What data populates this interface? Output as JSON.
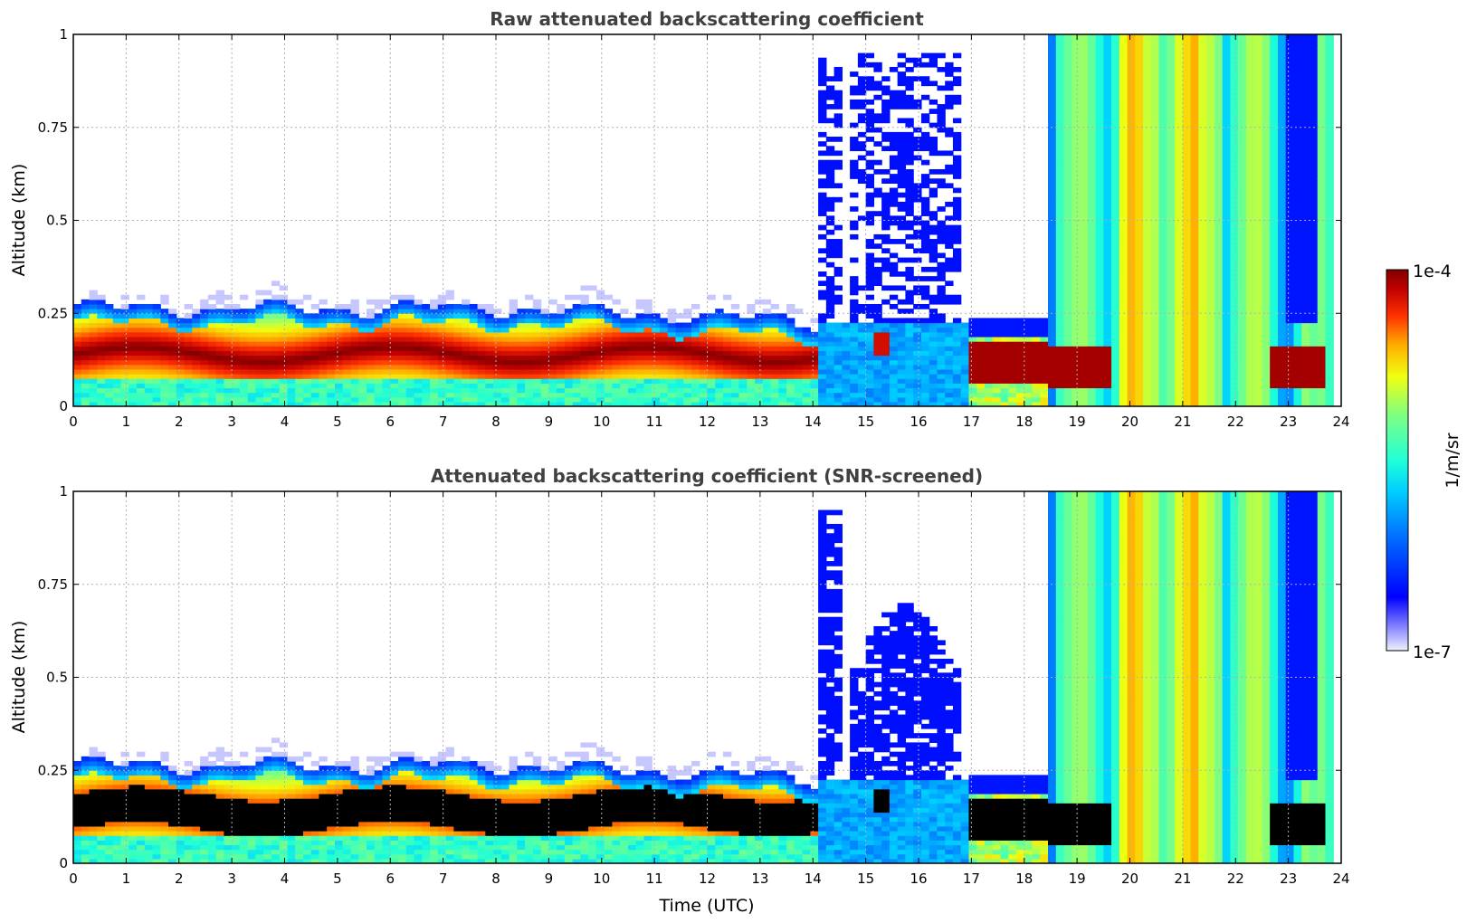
{
  "chart_data": [
    {
      "type": "heatmap",
      "title": "Raw attenuated backscattering coefficient",
      "xlabel": "",
      "ylabel": "Altitude (km)",
      "xlim": [
        0,
        24
      ],
      "ylim": [
        0,
        1
      ],
      "x_ticks": [
        "0",
        "1",
        "2",
        "3",
        "4",
        "5",
        "6",
        "7",
        "8",
        "9",
        "10",
        "11",
        "12",
        "13",
        "14",
        "15",
        "16",
        "17",
        "18",
        "19",
        "20",
        "21",
        "22",
        "23",
        "24"
      ],
      "y_ticks": [
        "0",
        "0.25",
        "0.5",
        "0.75",
        "1"
      ],
      "grid": true,
      "screened": false,
      "layers": [
        {
          "feature": "dense aerosol/fog layer",
          "t_start": 0,
          "t_end": 14,
          "base_km": 0.0,
          "top_km": 0.28,
          "peak_km": 0.14,
          "level": "high"
        },
        {
          "feature": "weak echo plumes",
          "t_start": 14,
          "t_end": 16.9,
          "base_km": 0.0,
          "top_km": 1.0,
          "level": "low"
        },
        {
          "feature": "dense layer",
          "t_start": 16.9,
          "t_end": 18.4,
          "base_km": 0.05,
          "top_km": 0.18,
          "level": "high"
        },
        {
          "feature": "precipitation/cloud echoes",
          "t_start": 18.4,
          "t_end": 23.8,
          "base_km": 0.0,
          "top_km": 1.0,
          "level": "medium"
        },
        {
          "feature": "dense layer",
          "t_start": 22.6,
          "t_end": 23.8,
          "base_km": 0.05,
          "top_km": 0.17,
          "level": "high"
        }
      ]
    },
    {
      "type": "heatmap",
      "title": "Attenuated backscattering coefficient (SNR-screened)",
      "xlabel": "Time (UTC)",
      "ylabel": "Altitude (km)",
      "xlim": [
        0,
        24
      ],
      "ylim": [
        0,
        1
      ],
      "x_ticks": [
        "0",
        "1",
        "2",
        "3",
        "4",
        "5",
        "6",
        "7",
        "8",
        "9",
        "10",
        "11",
        "12",
        "13",
        "14",
        "15",
        "16",
        "17",
        "18",
        "19",
        "20",
        "21",
        "22",
        "23",
        "24"
      ],
      "y_ticks": [
        "0",
        "0.25",
        "0.5",
        "0.75",
        "1"
      ],
      "grid": true,
      "screened": true,
      "layers": [
        {
          "feature": "dense layer (screened/saturated)",
          "t_start": 0,
          "t_end": 14,
          "base_km": 0.0,
          "top_km": 0.28,
          "peak_km": 0.14,
          "level": "saturated"
        },
        {
          "feature": "weak echo plumes",
          "t_start": 14,
          "t_end": 16.9,
          "base_km": 0.0,
          "top_km": 1.0,
          "level": "low"
        },
        {
          "feature": "dense layer (saturated)",
          "t_start": 16.9,
          "t_end": 19.6,
          "base_km": 0.05,
          "top_km": 0.18,
          "level": "saturated"
        },
        {
          "feature": "precipitation/cloud echoes",
          "t_start": 18.4,
          "t_end": 23.8,
          "base_km": 0.0,
          "top_km": 1.0,
          "level": "medium"
        },
        {
          "feature": "dense layer (saturated)",
          "t_start": 22.6,
          "t_end": 23.8,
          "base_km": 0.05,
          "top_km": 0.17,
          "level": "saturated"
        }
      ]
    }
  ],
  "colorbar": {
    "label": "1/m/sr",
    "max_label": "1e-4",
    "min_label": "1e-7",
    "colormap": "jet",
    "colors": [
      "#e8e8ff",
      "#0000ff",
      "#00b4ff",
      "#00ffd0",
      "#7fff80",
      "#ffff00",
      "#ff8000",
      "#ff0000",
      "#800000"
    ]
  }
}
